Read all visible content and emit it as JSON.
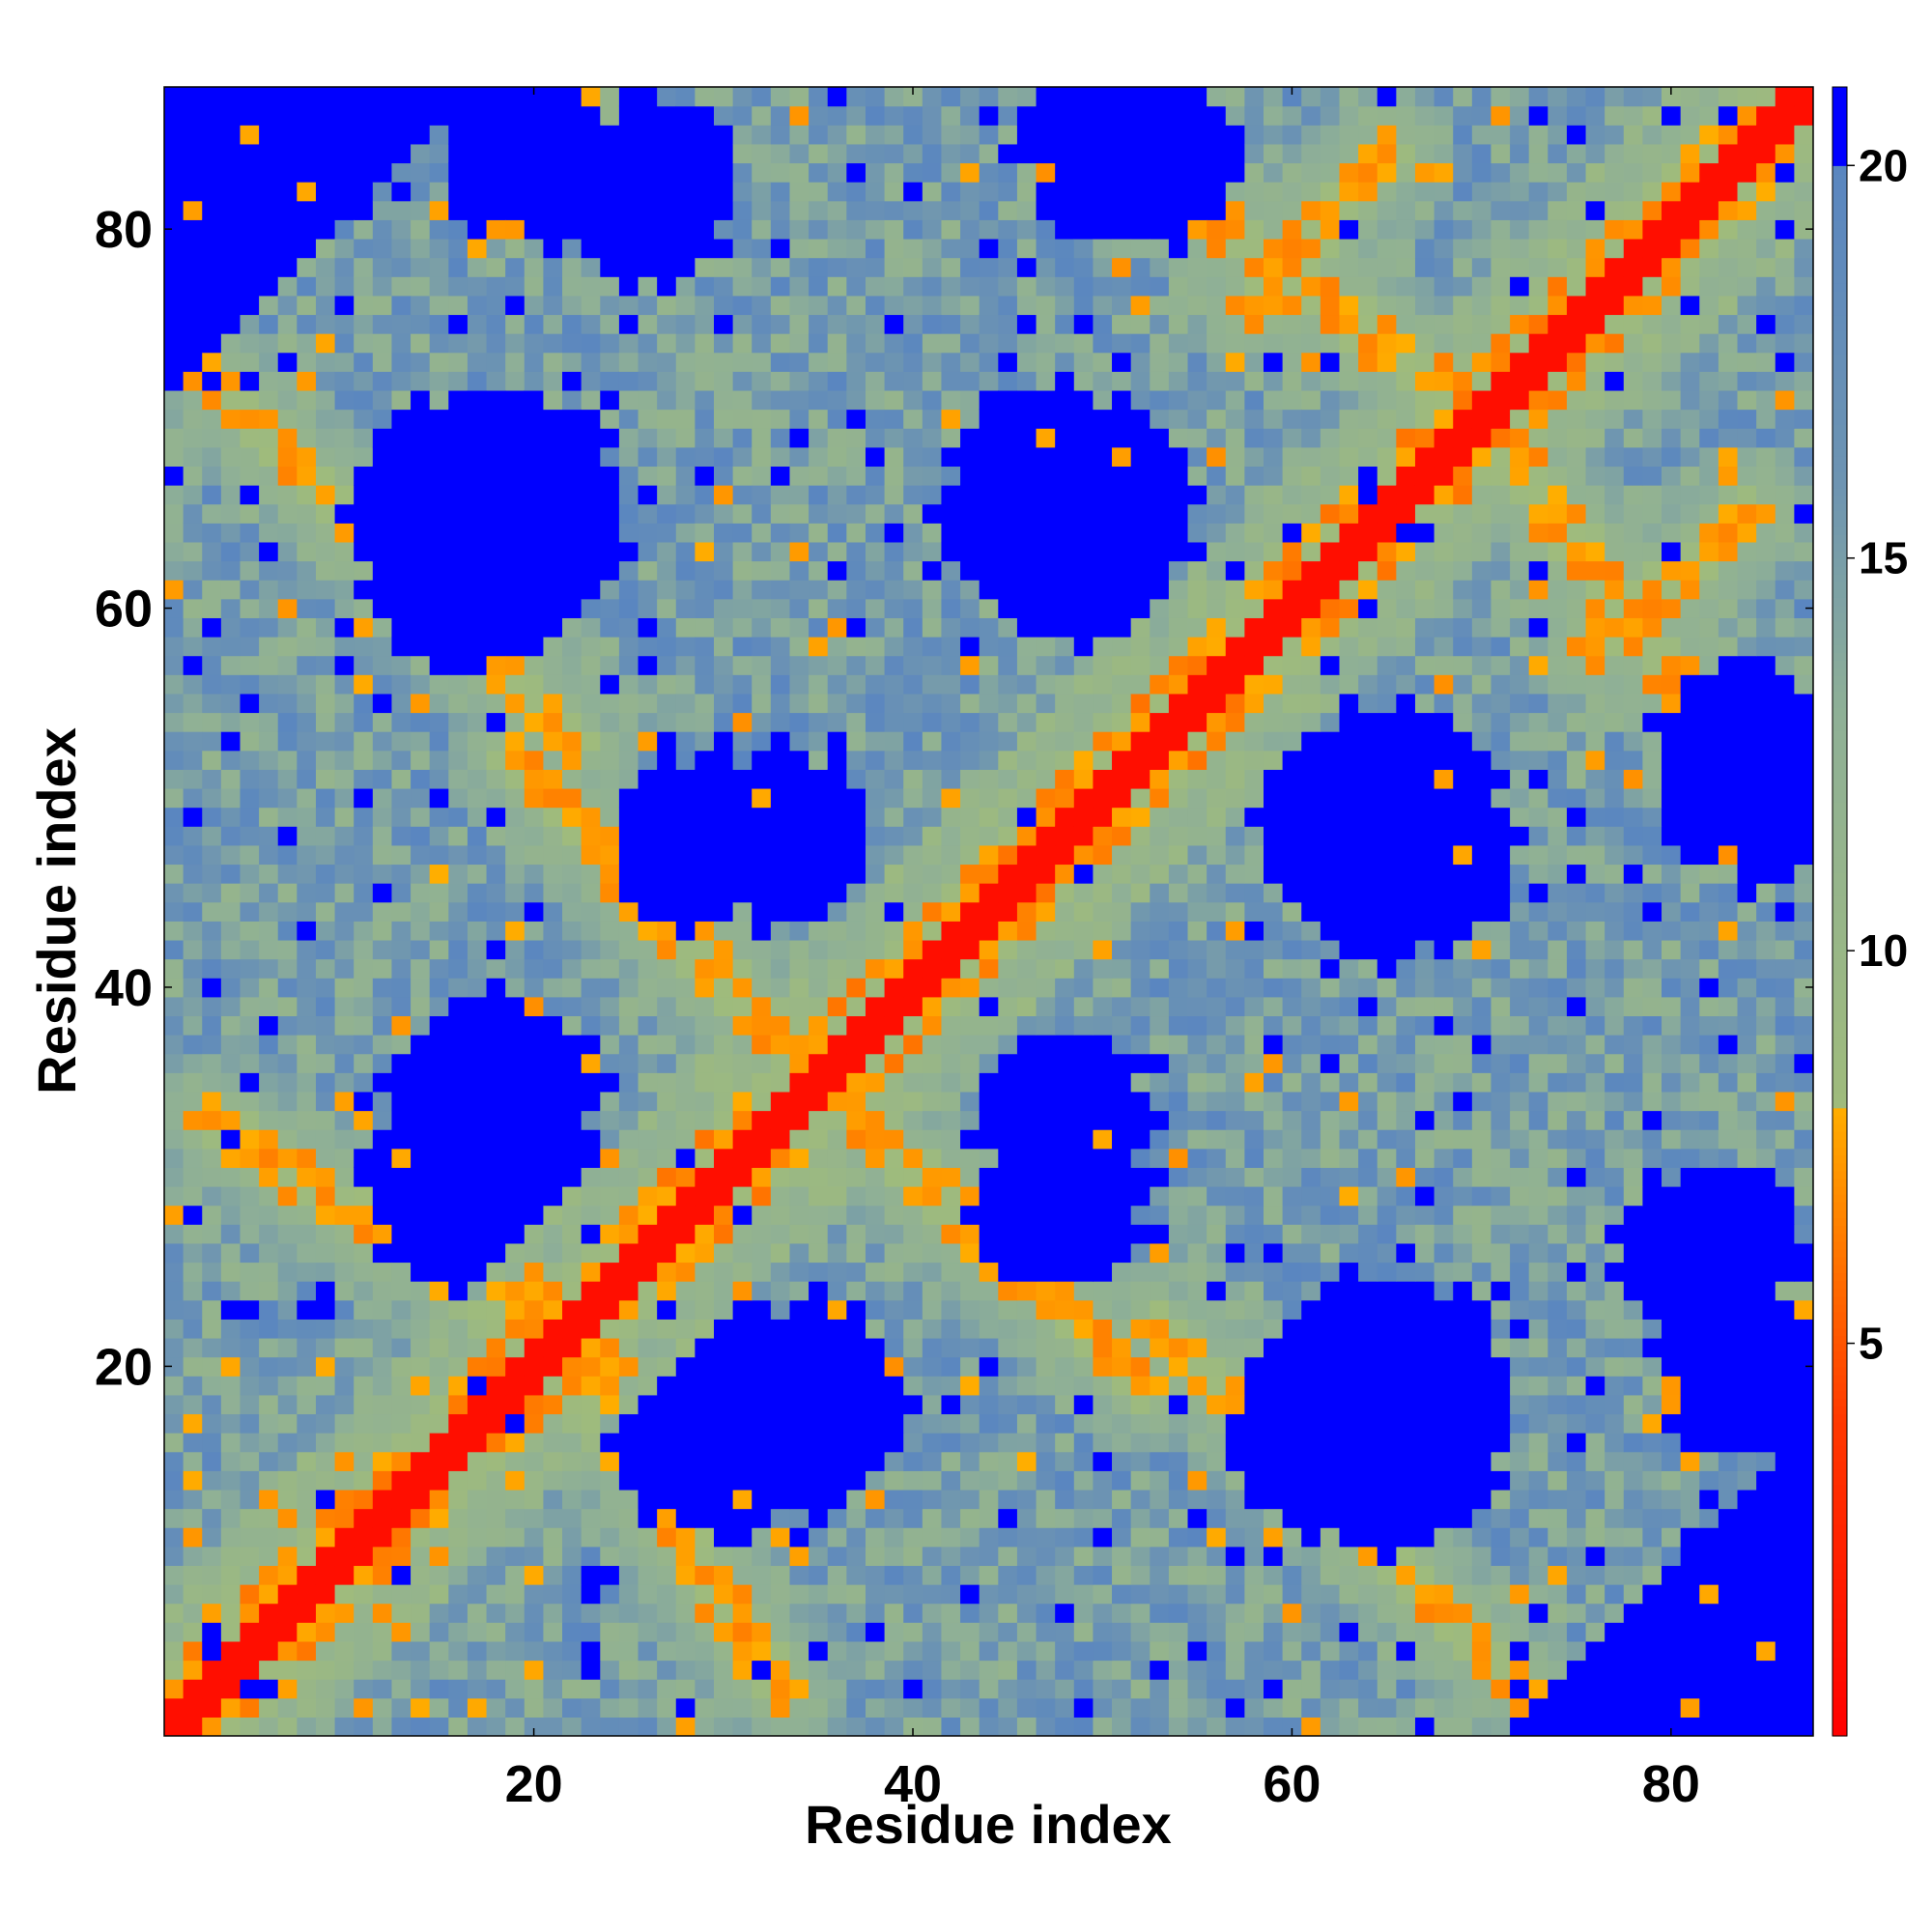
{
  "chart_data": {
    "type": "heatmap",
    "title": "",
    "xlabel": "Residue index",
    "ylabel": "Residue index",
    "xlim": [
      0.5,
      87.5
    ],
    "ylim": [
      0.5,
      87.5
    ],
    "n_residues": 87,
    "x_ticks": [
      20,
      40,
      60,
      80
    ],
    "y_ticks": [
      20,
      40,
      60,
      80
    ],
    "grid": false,
    "colorbar": {
      "range": [
        0,
        21
      ],
      "ticks": [
        5,
        10,
        15,
        20
      ],
      "position": "right",
      "stops": [
        {
          "value": 0,
          "color": "#ff0000"
        },
        {
          "value": 4,
          "color": "#ff3800"
        },
        {
          "value": 6.5,
          "color": "#ff8000"
        },
        {
          "value": 8,
          "color": "#ffae00"
        },
        {
          "value": 8.01,
          "color": "#9fbb7c"
        },
        {
          "value": 13,
          "color": "#8fb096"
        },
        {
          "value": 16,
          "color": "#6d94b2"
        },
        {
          "value": 20,
          "color": "#5a86c0"
        },
        {
          "value": 20.01,
          "color": "#0000ff"
        },
        {
          "value": 21,
          "color": "#0000ff"
        }
      ]
    },
    "description_values": {
      "diagonal_band_width": 2,
      "strands": [
        {
          "i": [
            3,
            26
          ],
          "j": [
            33,
            18
          ],
          "note": "antiparallel band"
        },
        {
          "i": [
            19,
            36
          ],
          "j": [
            52,
            34
          ],
          "note": "antiparallel band"
        },
        {
          "i": [
            53,
            72
          ],
          "j": [
            22,
            3
          ],
          "note": "antiparallel band"
        },
        {
          "i": [
            54,
            70
          ],
          "j": [
            82,
            70
          ],
          "note": "parallel-ish band"
        },
        {
          "i": [
            76,
            84
          ],
          "j": [
            58,
            65
          ],
          "note": "band"
        }
      ],
      "blue_blobs": [
        {
          "cx": 17,
          "cy": 64,
          "r": 6
        },
        {
          "cx": 17,
          "cy": 30,
          "r": 5
        },
        {
          "cx": 33,
          "cy": 48,
          "r": 4
        },
        {
          "cx": 48,
          "cy": 65,
          "r": 6
        },
        {
          "cx": 48,
          "cy": 29,
          "r": 4
        },
        {
          "cx": 64,
          "cy": 48,
          "r": 5
        },
        {
          "cx": 65,
          "cy": 18,
          "r": 6
        },
        {
          "cx": 34,
          "cy": 18,
          "r": 5
        },
        {
          "cx": 26,
          "cy": 82,
          "r": 4
        },
        {
          "cx": 52,
          "cy": 84,
          "r": 4
        },
        {
          "cx": 84,
          "cy": 50,
          "r": 4
        },
        {
          "cx": 84,
          "cy": 20,
          "r": 4
        }
      ]
    }
  }
}
